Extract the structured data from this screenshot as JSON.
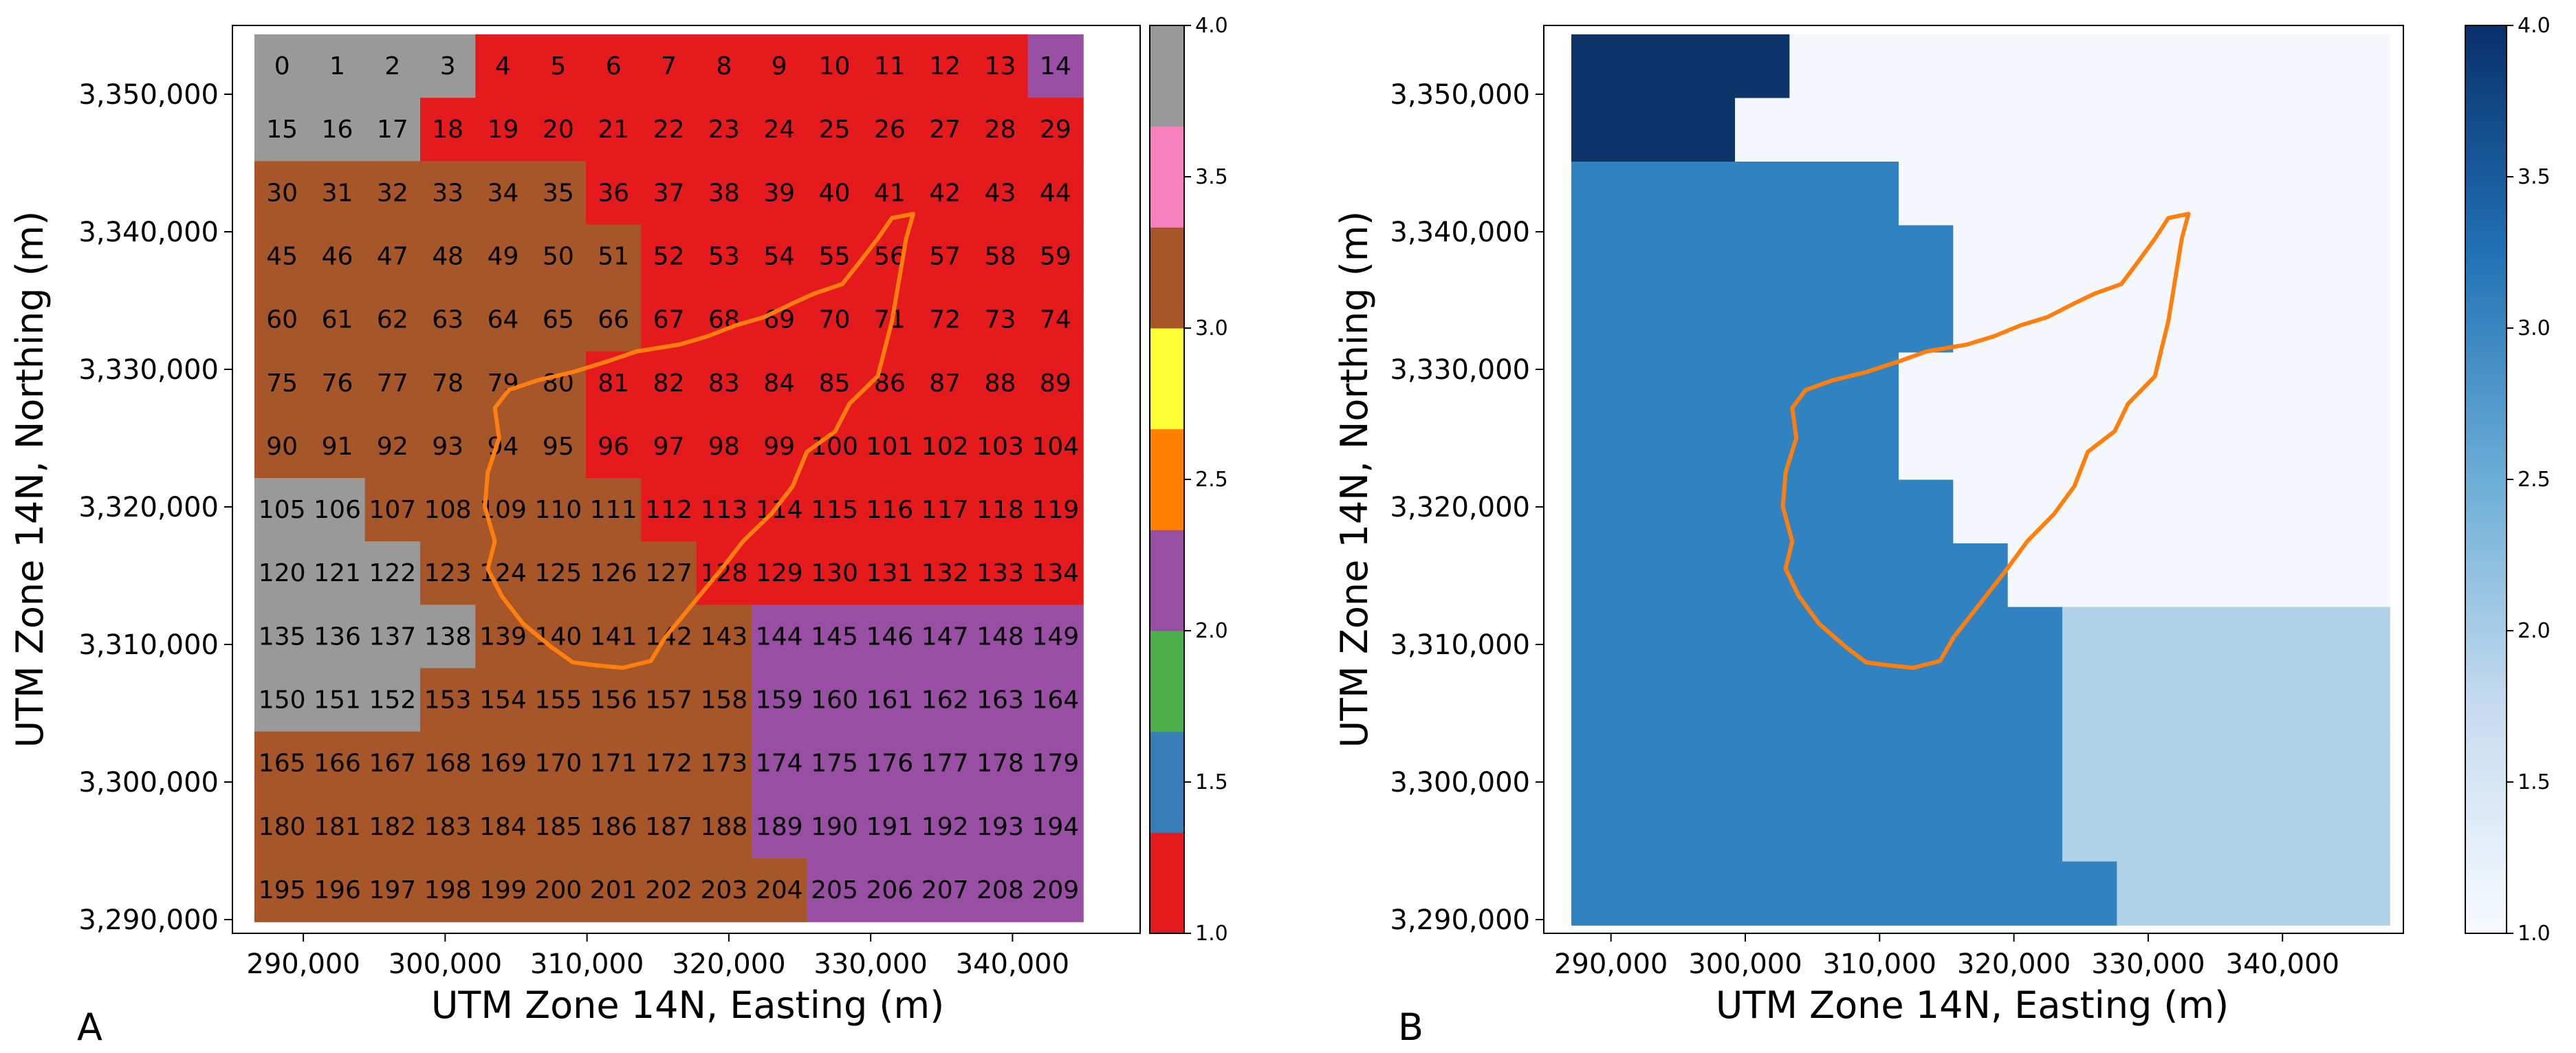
{
  "figure": {
    "panel_labels": [
      "A",
      "B"
    ]
  },
  "chart_data": [
    {
      "panel": "A",
      "type": "heatmap",
      "xlabel": "UTM Zone 14N, Easting (m)",
      "ylabel": "UTM Zone 14N, Northing (m)",
      "xlim": [
        285000,
        349000
      ],
      "ylim": [
        3289000,
        3355000
      ],
      "xticks": [
        290000,
        300000,
        310000,
        320000,
        330000,
        340000
      ],
      "xtick_labels": [
        "290,000",
        "300,000",
        "310,000",
        "320,000",
        "330,000",
        "340,000"
      ],
      "yticks": [
        3290000,
        3300000,
        3310000,
        3320000,
        3330000,
        3340000,
        3350000
      ],
      "ytick_labels": [
        "3,290,000",
        "3,300,000",
        "3,310,000",
        "3,320,000",
        "3,330,000",
        "3,340,000",
        "3,350,000"
      ],
      "grid": {
        "rows": 14,
        "cols": 15
      },
      "cell_ids_labeled": true,
      "cell_ids": [
        [
          0,
          1,
          2,
          3,
          4,
          5,
          6,
          7,
          8,
          9,
          10,
          11,
          12,
          13,
          14
        ],
        [
          15,
          16,
          17,
          18,
          19,
          20,
          21,
          22,
          23,
          24,
          25,
          26,
          27,
          28,
          29
        ],
        [
          30,
          31,
          32,
          33,
          34,
          35,
          36,
          37,
          38,
          39,
          40,
          41,
          42,
          43,
          44
        ],
        [
          45,
          46,
          47,
          48,
          49,
          50,
          51,
          52,
          53,
          54,
          55,
          56,
          57,
          58,
          59
        ],
        [
          60,
          61,
          62,
          63,
          64,
          65,
          66,
          67,
          68,
          69,
          70,
          71,
          72,
          73,
          74
        ],
        [
          75,
          76,
          77,
          78,
          79,
          80,
          81,
          82,
          83,
          84,
          85,
          86,
          87,
          88,
          89
        ],
        [
          90,
          91,
          92,
          93,
          94,
          95,
          96,
          97,
          98,
          99,
          100,
          101,
          102,
          103,
          104
        ],
        [
          105,
          106,
          107,
          108,
          109,
          110,
          111,
          112,
          113,
          114,
          115,
          116,
          117,
          118,
          119
        ],
        [
          120,
          121,
          122,
          123,
          124,
          125,
          126,
          127,
          128,
          129,
          130,
          131,
          132,
          133,
          134
        ],
        [
          135,
          136,
          137,
          138,
          139,
          140,
          141,
          142,
          143,
          144,
          145,
          146,
          147,
          148,
          149
        ],
        [
          150,
          151,
          152,
          153,
          154,
          155,
          156,
          157,
          158,
          159,
          160,
          161,
          162,
          163,
          164
        ],
        [
          165,
          166,
          167,
          168,
          169,
          170,
          171,
          172,
          173,
          174,
          175,
          176,
          177,
          178,
          179
        ],
        [
          180,
          181,
          182,
          183,
          184,
          185,
          186,
          187,
          188,
          189,
          190,
          191,
          192,
          193,
          194
        ],
        [
          195,
          196,
          197,
          198,
          199,
          200,
          201,
          202,
          203,
          204,
          205,
          206,
          207,
          208,
          209
        ]
      ],
      "values": [
        [
          4,
          4,
          4,
          4,
          1,
          1,
          1,
          1,
          1,
          1,
          1,
          1,
          1,
          1,
          2
        ],
        [
          4,
          4,
          4,
          1,
          1,
          1,
          1,
          1,
          1,
          1,
          1,
          1,
          1,
          1,
          1
        ],
        [
          3,
          3,
          3,
          3,
          3,
          3,
          1,
          1,
          1,
          1,
          1,
          1,
          1,
          1,
          1
        ],
        [
          3,
          3,
          3,
          3,
          3,
          3,
          3,
          1,
          1,
          1,
          1,
          1,
          1,
          1,
          1
        ],
        [
          3,
          3,
          3,
          3,
          3,
          3,
          3,
          1,
          1,
          1,
          1,
          1,
          1,
          1,
          1
        ],
        [
          3,
          3,
          3,
          3,
          3,
          3,
          1,
          1,
          1,
          1,
          1,
          1,
          1,
          1,
          1
        ],
        [
          3,
          3,
          3,
          3,
          3,
          3,
          1,
          1,
          1,
          1,
          1,
          1,
          1,
          1,
          1
        ],
        [
          4,
          4,
          3,
          3,
          3,
          3,
          3,
          1,
          1,
          1,
          1,
          1,
          1,
          1,
          1
        ],
        [
          4,
          4,
          4,
          3,
          3,
          3,
          3,
          3,
          1,
          1,
          1,
          1,
          1,
          1,
          1
        ],
        [
          4,
          4,
          4,
          4,
          3,
          3,
          3,
          3,
          3,
          2,
          2,
          2,
          2,
          2,
          2
        ],
        [
          4,
          4,
          4,
          3,
          3,
          3,
          3,
          3,
          3,
          2,
          2,
          2,
          2,
          2,
          2
        ],
        [
          3,
          3,
          3,
          3,
          3,
          3,
          3,
          3,
          3,
          2,
          2,
          2,
          2,
          2,
          2
        ],
        [
          3,
          3,
          3,
          3,
          3,
          3,
          3,
          3,
          3,
          2,
          2,
          2,
          2,
          2,
          2
        ],
        [
          3,
          3,
          3,
          3,
          3,
          3,
          3,
          3,
          3,
          3,
          2,
          2,
          2,
          2,
          2
        ]
      ],
      "colorbar": {
        "range": [
          1.0,
          4.0
        ],
        "ticks": [
          "1.0",
          "1.5",
          "2.0",
          "2.5",
          "3.0",
          "3.5",
          "4.0"
        ],
        "colors": [
          "#e41a1c",
          "#377eb8",
          "#4daf4a",
          "#984ea3",
          "#ff7f00",
          "#ffff33",
          "#a65628",
          "#f781bf",
          "#999999"
        ]
      },
      "category_colors": {
        "1": "#e41a1c",
        "2": "#984ea3",
        "3": "#a65628",
        "4": "#999999"
      }
    },
    {
      "panel": "B",
      "type": "heatmap",
      "xlabel": "UTM Zone 14N, Easting (m)",
      "ylabel": "UTM Zone 14N, Northing (m)",
      "xlim": [
        285000,
        349000
      ],
      "ylim": [
        3289000,
        3355000
      ],
      "xticks": [
        290000,
        300000,
        310000,
        320000,
        330000,
        340000
      ],
      "xtick_labels": [
        "290,000",
        "300,000",
        "310,000",
        "320,000",
        "330,000",
        "340,000"
      ],
      "yticks": [
        3290000,
        3300000,
        3310000,
        3320000,
        3330000,
        3340000,
        3350000
      ],
      "ytick_labels": [
        "3,290,000",
        "3,300,000",
        "3,310,000",
        "3,320,000",
        "3,330,000",
        "3,340,000",
        "3,350,000"
      ],
      "grid": {
        "rows": 14,
        "cols": 15
      },
      "cell_ids_labeled": false,
      "values": [
        [
          4,
          4,
          4,
          4,
          1,
          1,
          1,
          1,
          1,
          1,
          1,
          1,
          1,
          1,
          1
        ],
        [
          4,
          4,
          4,
          1,
          1,
          1,
          1,
          1,
          1,
          1,
          1,
          1,
          1,
          1,
          1
        ],
        [
          3,
          3,
          3,
          3,
          3,
          3,
          1,
          1,
          1,
          1,
          1,
          1,
          1,
          1,
          1
        ],
        [
          3,
          3,
          3,
          3,
          3,
          3,
          3,
          1,
          1,
          1,
          1,
          1,
          1,
          1,
          1
        ],
        [
          3,
          3,
          3,
          3,
          3,
          3,
          3,
          1,
          1,
          1,
          1,
          1,
          1,
          1,
          1
        ],
        [
          3,
          3,
          3,
          3,
          3,
          3,
          1,
          1,
          1,
          1,
          1,
          1,
          1,
          1,
          1
        ],
        [
          3,
          3,
          3,
          3,
          3,
          3,
          1,
          1,
          1,
          1,
          1,
          1,
          1,
          1,
          1
        ],
        [
          3,
          3,
          3,
          3,
          3,
          3,
          3,
          1,
          1,
          1,
          1,
          1,
          1,
          1,
          1
        ],
        [
          3,
          3,
          3,
          3,
          3,
          3,
          3,
          3,
          1,
          1,
          1,
          1,
          1,
          1,
          1
        ],
        [
          3,
          3,
          3,
          3,
          3,
          3,
          3,
          3,
          3,
          2,
          2,
          2,
          2,
          2,
          2
        ],
        [
          3,
          3,
          3,
          3,
          3,
          3,
          3,
          3,
          3,
          2,
          2,
          2,
          2,
          2,
          2
        ],
        [
          3,
          3,
          3,
          3,
          3,
          3,
          3,
          3,
          3,
          2,
          2,
          2,
          2,
          2,
          2
        ],
        [
          3,
          3,
          3,
          3,
          3,
          3,
          3,
          3,
          3,
          2,
          2,
          2,
          2,
          2,
          2
        ],
        [
          3,
          3,
          3,
          3,
          3,
          3,
          3,
          3,
          3,
          3,
          2,
          2,
          2,
          2,
          2
        ]
      ],
      "colorbar": {
        "range": [
          1.0,
          4.0
        ],
        "ticks": [
          "1.0",
          "1.5",
          "2.0",
          "2.5",
          "3.0",
          "3.5",
          "4.0"
        ],
        "colormap": "Blues",
        "gradient": [
          "#f7fbff",
          "#c6dbef",
          "#6baed6",
          "#2171b5",
          "#08306b"
        ]
      },
      "category_colors": {
        "1": "#f4f8fd",
        "2": "#b0d0e7",
        "3": "#3182c0",
        "4": "#0c3469"
      }
    }
  ],
  "boundary": {
    "color": "#ff7f0e",
    "points_utm": [
      [
        310500,
        3308500
      ],
      [
        312500,
        3308300
      ],
      [
        314500,
        3308800
      ],
      [
        315500,
        3310500
      ],
      [
        317500,
        3313000
      ],
      [
        319500,
        3315500
      ],
      [
        321000,
        3317500
      ],
      [
        323000,
        3319500
      ],
      [
        324500,
        3321500
      ],
      [
        325500,
        3324000
      ],
      [
        327500,
        3325500
      ],
      [
        328500,
        3327500
      ],
      [
        330500,
        3329500
      ],
      [
        331000,
        3331500
      ],
      [
        331500,
        3333500
      ],
      [
        332000,
        3336500
      ],
      [
        332500,
        3339500
      ],
      [
        333000,
        3341300
      ],
      [
        331500,
        3341000
      ],
      [
        330500,
        3339500
      ],
      [
        329000,
        3337500
      ],
      [
        328000,
        3336200
      ],
      [
        326000,
        3335500
      ],
      [
        324500,
        3334800
      ],
      [
        322500,
        3333800
      ],
      [
        320500,
        3333200
      ],
      [
        318500,
        3332400
      ],
      [
        316500,
        3331800
      ],
      [
        313500,
        3331300
      ],
      [
        311500,
        3330600
      ],
      [
        309000,
        3329800
      ],
      [
        306500,
        3329200
      ],
      [
        304500,
        3328500
      ],
      [
        303500,
        3327200
      ],
      [
        303800,
        3325000
      ],
      [
        303000,
        3322500
      ],
      [
        302800,
        3320000
      ],
      [
        303500,
        3317500
      ],
      [
        303000,
        3315500
      ],
      [
        304000,
        3313500
      ],
      [
        305500,
        3311500
      ],
      [
        307500,
        3309800
      ],
      [
        309000,
        3308700
      ],
      [
        310500,
        3308500
      ]
    ]
  }
}
